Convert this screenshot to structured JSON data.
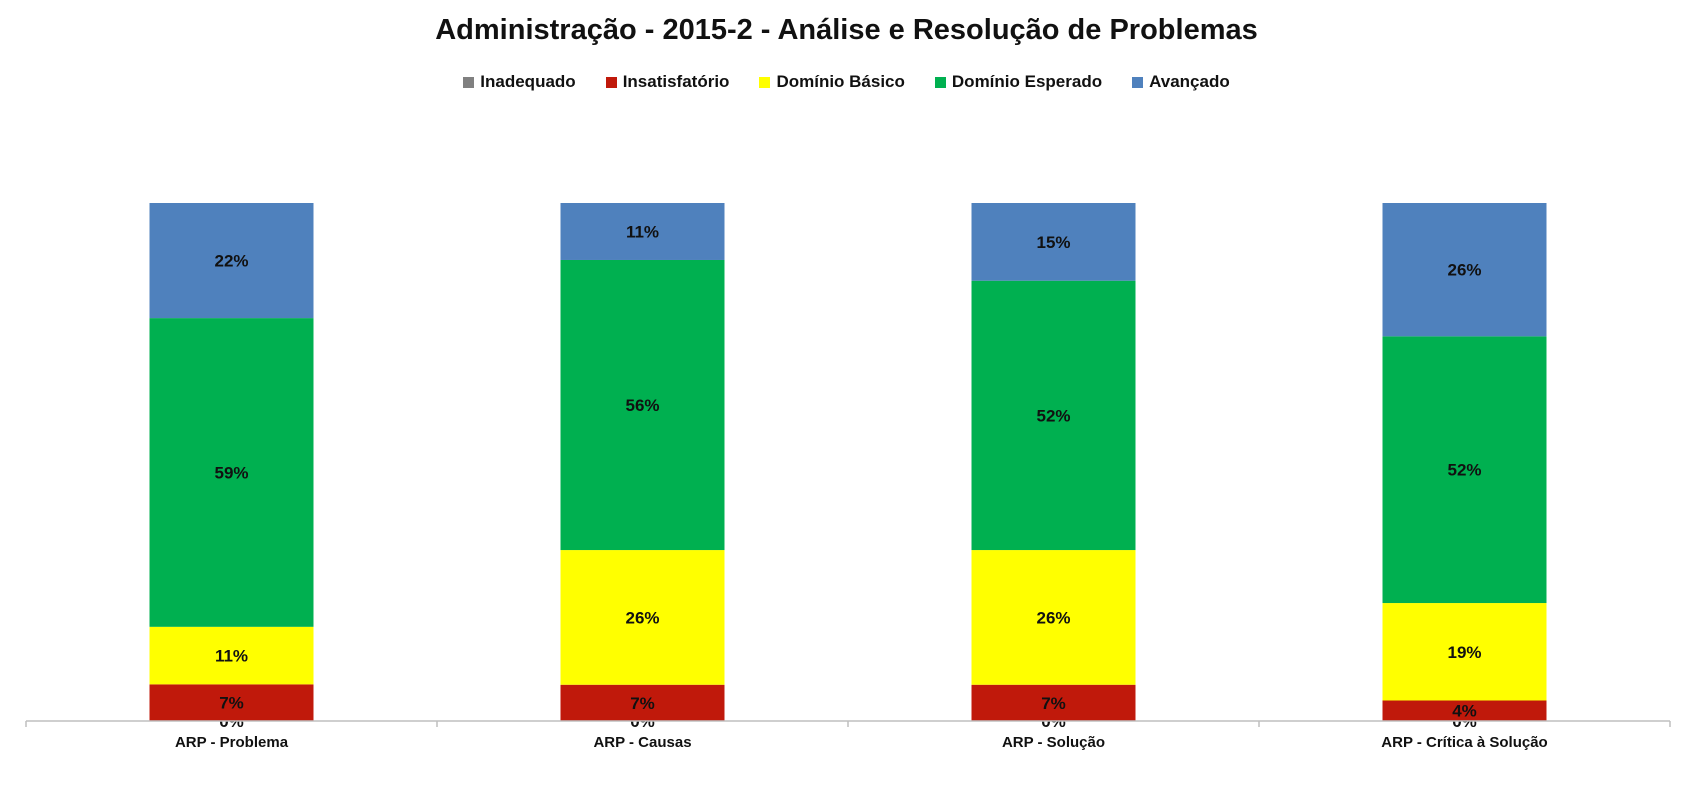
{
  "chart_data": {
    "type": "bar",
    "stacked": true,
    "normalized": true,
    "title": "Administração - 2015-2 - Análise e Resolução de Problemas",
    "categories": [
      "ARP  - Problema",
      "ARP  - Causas",
      "ARP  - Solução",
      "ARP  - Crítica à Solução"
    ],
    "series": [
      {
        "name": "Inadequado",
        "color": "#808080",
        "values": [
          0,
          0,
          0,
          0
        ],
        "labels": [
          "0%",
          "0%",
          "0%",
          "0%"
        ]
      },
      {
        "name": "Insatisfatório",
        "color": "#c0190b",
        "values": [
          7,
          7,
          7,
          4
        ],
        "labels": [
          "7%",
          "7%",
          "7%",
          "4%"
        ]
      },
      {
        "name": "Domínio Básico",
        "color": "#ffff00",
        "values": [
          11,
          26,
          26,
          19
        ],
        "labels": [
          "11%",
          "26%",
          "26%",
          "19%"
        ]
      },
      {
        "name": "Domínio Esperado",
        "color": "#00b050",
        "values": [
          59,
          56,
          52,
          52
        ],
        "labels": [
          "59%",
          "56%",
          "52%",
          "52%"
        ]
      },
      {
        "name": "Avançado",
        "color": "#4f81bd",
        "values": [
          22,
          11,
          15,
          26
        ],
        "labels": [
          "22%",
          "11%",
          "15%",
          "26%"
        ]
      }
    ],
    "ylim": [
      0,
      100
    ],
    "legend_position": "top",
    "grid": false
  }
}
